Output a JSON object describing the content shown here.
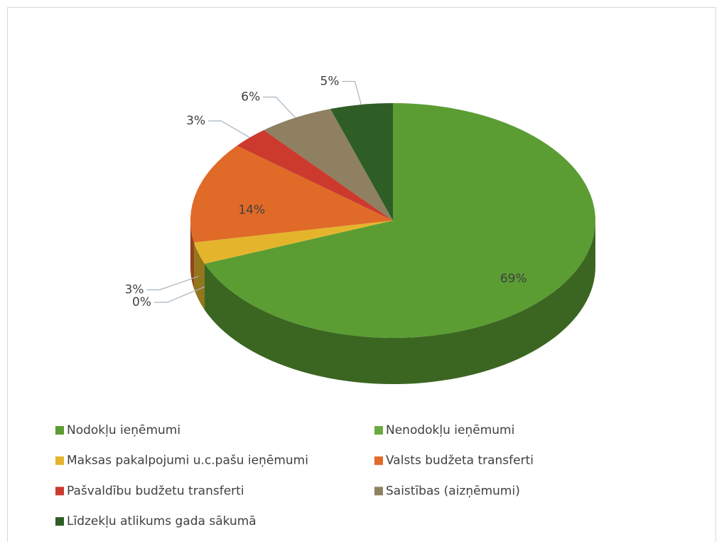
{
  "chart_data": {
    "type": "pie",
    "categories": [
      "Nodokļu ieņēmumi",
      "Nenodokļu ieņēmumi",
      "Maksas pakalpojumi u.c.pašu ieņēmumi",
      "Valsts budžeta transferti",
      "Pašvaldību budžetu transferti",
      "Saistības (aizņēmumi)",
      "Līdzekļu atlikums gada sākumā"
    ],
    "values": [
      69,
      0,
      3,
      14,
      3,
      6,
      5
    ],
    "value_labels": [
      "69%",
      "0%",
      "3%",
      "14%",
      "3%",
      "6%",
      "5%"
    ],
    "colors": [
      "#5b9d33",
      "#6aaa3e",
      "#e4b52c",
      "#e06a27",
      "#cc3a2e",
      "#8e8060",
      "#2f5d26"
    ],
    "legend": "bottom"
  }
}
